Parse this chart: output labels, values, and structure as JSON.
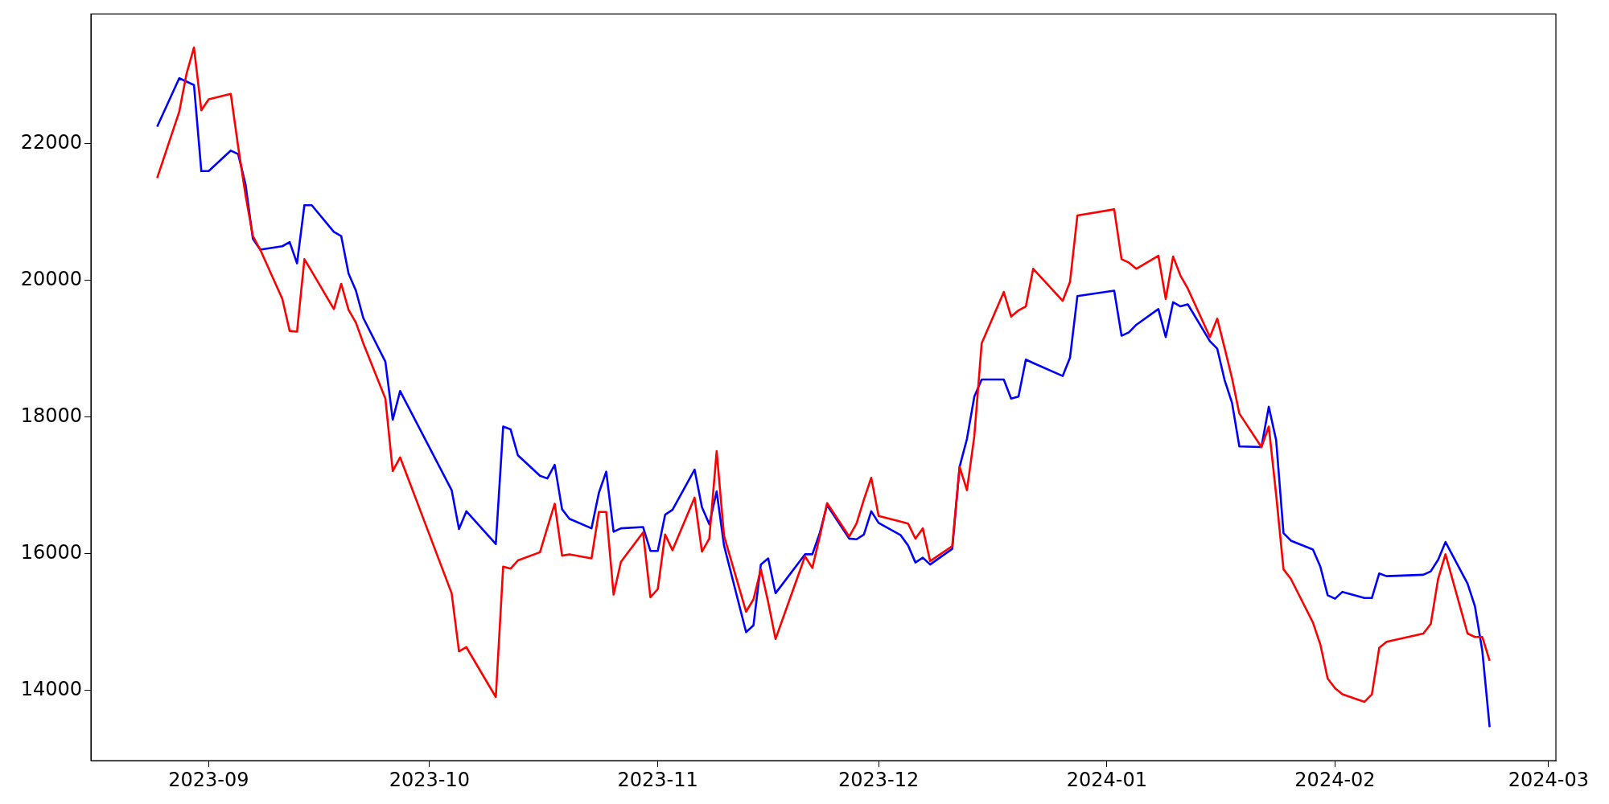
{
  "chart_data": {
    "type": "line",
    "x": [
      "2023-08-25",
      "2023-08-28",
      "2023-08-29",
      "2023-08-30",
      "2023-08-31",
      "2023-09-01",
      "2023-09-04",
      "2023-09-05",
      "2023-09-06",
      "2023-09-07",
      "2023-09-08",
      "2023-09-11",
      "2023-09-12",
      "2023-09-13",
      "2023-09-14",
      "2023-09-15",
      "2023-09-18",
      "2023-09-19",
      "2023-09-20",
      "2023-09-21",
      "2023-09-22",
      "2023-09-25",
      "2023-09-26",
      "2023-09-27",
      "2023-10-04",
      "2023-10-05",
      "2023-10-06",
      "2023-10-10",
      "2023-10-11",
      "2023-10-12",
      "2023-10-13",
      "2023-10-16",
      "2023-10-17",
      "2023-10-18",
      "2023-10-19",
      "2023-10-20",
      "2023-10-23",
      "2023-10-24",
      "2023-10-25",
      "2023-10-26",
      "2023-10-27",
      "2023-10-30",
      "2023-10-31",
      "2023-11-01",
      "2023-11-02",
      "2023-11-03",
      "2023-11-06",
      "2023-11-07",
      "2023-11-08",
      "2023-11-09",
      "2023-11-10",
      "2023-11-13",
      "2023-11-14",
      "2023-11-15",
      "2023-11-16",
      "2023-11-17",
      "2023-11-21",
      "2023-11-22",
      "2023-11-23",
      "2023-11-24",
      "2023-11-27",
      "2023-11-28",
      "2023-11-29",
      "2023-11-30",
      "2023-12-01",
      "2023-12-04",
      "2023-12-05",
      "2023-12-06",
      "2023-12-07",
      "2023-12-08",
      "2023-12-11",
      "2023-12-12",
      "2023-12-13",
      "2023-12-14",
      "2023-12-15",
      "2023-12-18",
      "2023-12-19",
      "2023-12-20",
      "2023-12-21",
      "2023-12-22",
      "2023-12-26",
      "2023-12-27",
      "2023-12-28",
      "2024-01-02",
      "2024-01-03",
      "2024-01-04",
      "2024-01-05",
      "2024-01-08",
      "2024-01-09",
      "2024-01-10",
      "2024-01-11",
      "2024-01-12",
      "2024-01-15",
      "2024-01-16",
      "2024-01-17",
      "2024-01-18",
      "2024-01-19",
      "2024-01-22",
      "2024-01-23",
      "2024-01-24",
      "2024-01-25",
      "2024-01-26",
      "2024-01-29",
      "2024-01-30",
      "2024-01-31",
      "2024-02-01",
      "2024-02-02",
      "2024-02-05",
      "2024-02-06",
      "2024-02-07",
      "2024-02-08",
      "2024-02-13",
      "2024-02-14",
      "2024-02-15",
      "2024-02-16",
      "2024-02-19",
      "2024-02-20",
      "2024-02-21",
      "2024-02-22"
    ],
    "series": [
      {
        "color": "#ff0000",
        "values": [
          21500,
          22470,
          23030,
          23410,
          22490,
          22650,
          22730,
          21960,
          21250,
          20650,
          20450,
          19730,
          19260,
          19250,
          20310,
          20130,
          19580,
          19950,
          19570,
          19380,
          19080,
          18270,
          17210,
          17410,
          15420,
          14570,
          14630,
          13900,
          15810,
          15780,
          15900,
          16020,
          16380,
          16730,
          15970,
          15990,
          15930,
          16610,
          16610,
          15400,
          15880,
          16310,
          15360,
          15480,
          16280,
          16050,
          16820,
          16030,
          16220,
          17500,
          16260,
          15150,
          15330,
          15770,
          15290,
          14750,
          15960,
          15790,
          16250,
          16740,
          16250,
          16440,
          16790,
          17110,
          16550,
          16470,
          16440,
          16220,
          16370,
          15890,
          16110,
          17270,
          16930,
          17720,
          19080,
          19830,
          19470,
          19560,
          19620,
          20170,
          19700,
          19980,
          20950,
          21040,
          20310,
          20260,
          20170,
          20360,
          19730,
          20350,
          20070,
          19880,
          19170,
          19440,
          19010,
          18570,
          18050,
          17560,
          17860,
          16860,
          15770,
          15630,
          14990,
          14670,
          14170,
          14030,
          13940,
          13830,
          13940,
          14620,
          14710,
          14830,
          14970,
          15630,
          15990,
          14830,
          14780,
          14780,
          14430
        ]
      },
      {
        "color": "#0000ff",
        "values": [
          22250,
          22960,
          22910,
          22860,
          21600,
          21600,
          21900,
          21850,
          21410,
          20610,
          20450,
          20500,
          20560,
          20250,
          21100,
          21100,
          20710,
          20650,
          20100,
          19850,
          19450,
          18810,
          17960,
          18380,
          16930,
          16360,
          16620,
          16140,
          17860,
          17820,
          17440,
          17140,
          17100,
          17300,
          16650,
          16510,
          16370,
          16890,
          17200,
          16320,
          16370,
          16390,
          16040,
          16040,
          16570,
          16640,
          17230,
          16680,
          16430,
          16910,
          16120,
          14850,
          14950,
          15840,
          15930,
          15420,
          15990,
          15990,
          16300,
          16710,
          16220,
          16210,
          16280,
          16620,
          16450,
          16270,
          16120,
          15870,
          15940,
          15840,
          16070,
          17270,
          17680,
          18300,
          18550,
          18550,
          18270,
          18300,
          18840,
          18790,
          18600,
          18870,
          19770,
          19850,
          19190,
          19240,
          19350,
          19580,
          19170,
          19680,
          19620,
          19650,
          19110,
          19000,
          18540,
          18210,
          17570,
          17560,
          18150,
          17660,
          16300,
          16190,
          16060,
          15810,
          15390,
          15340,
          15440,
          15350,
          15350,
          15710,
          15670,
          15690,
          15740,
          15910,
          16170,
          15560,
          15230,
          14580,
          13460
        ]
      }
    ],
    "xlim": [
      "2023-08-16",
      "2024-03-02"
    ],
    "xticks": [
      "2023-09",
      "2023-10",
      "2023-11",
      "2023-12",
      "2024-01",
      "2024-02",
      "2024-03"
    ],
    "ylim": [
      12970,
      23900
    ],
    "yticks": [
      14000,
      16000,
      18000,
      20000,
      22000
    ]
  }
}
